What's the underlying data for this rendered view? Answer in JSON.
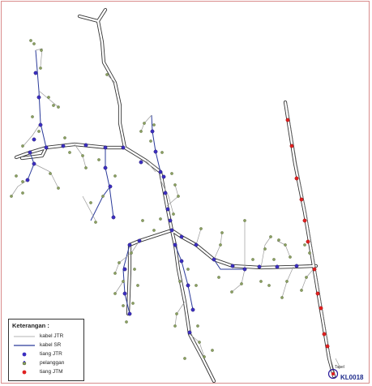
{
  "legend": {
    "title": "Keterangan :",
    "items": [
      {
        "label": "kabel JTR",
        "symbol": "thin-line",
        "color": "#9a9a9a"
      },
      {
        "label": "kabel SR",
        "symbol": "thick-line",
        "color": "#2a3a9a"
      },
      {
        "label": "tiang JTR",
        "symbol": "pole-jtr-icon",
        "color": "#3b2ec0"
      },
      {
        "label": "pelanggan",
        "symbol": "customer-icon",
        "color": "#5a8a2a"
      },
      {
        "label": "tiang JTM",
        "symbol": "pole-jtm-icon",
        "color": "#e02020"
      }
    ]
  },
  "station": {
    "label": "KL0018",
    "small_label": "Tapel"
  },
  "colors": {
    "frame_border": "#d98c8c",
    "road_outline": "#333333",
    "jtm_line": "#444444",
    "pole_jtr": "#3b2ec0",
    "pole_jtm": "#e02020",
    "customer": "#6b8a3a"
  }
}
